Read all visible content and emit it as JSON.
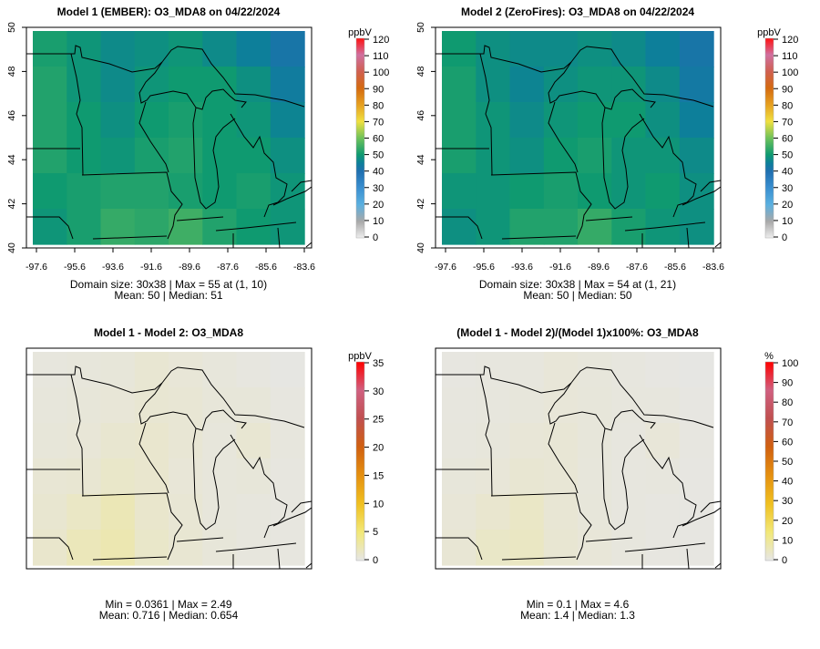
{
  "chart_data": [
    {
      "type": "heatmap",
      "title": "Model 1 (EMBER): O3_MDA8 on 04/22/2024",
      "stats_line1": "Domain size: 30x38 | Max = 55 at (1, 10)",
      "stats_line2": "Mean: 50 |  Median: 51",
      "x_ticks": [
        "-97.6",
        "-95.6",
        "-93.6",
        "-91.6",
        "-89.6",
        "-87.6",
        "-85.6",
        "-83.6"
      ],
      "y_ticks": [
        "50",
        "48",
        "46",
        "44",
        "42",
        "40"
      ],
      "colorbar": {
        "unit": "ppbV",
        "range": [
          0,
          120
        ],
        "ticks": [
          "0",
          "10",
          "20",
          "30",
          "40",
          "50",
          "60",
          "70",
          "80",
          "90",
          "100",
          "110",
          "120"
        ],
        "scale": "ozone"
      },
      "grid": [
        [
          51,
          49,
          47,
          48,
          49,
          47,
          45,
          42
        ],
        [
          52,
          49,
          47,
          49,
          50,
          50,
          48,
          44
        ],
        [
          52,
          50,
          48,
          50,
          51,
          50,
          49,
          46
        ],
        [
          52,
          50,
          49,
          51,
          52,
          50,
          50,
          48
        ],
        [
          50,
          51,
          52,
          52,
          51,
          50,
          51,
          49
        ],
        [
          49,
          51,
          54,
          53,
          55,
          52,
          50,
          49
        ]
      ]
    },
    {
      "type": "heatmap",
      "title": "Model 2 (ZeroFires): O3_MDA8 on 04/22/2024",
      "stats_line1": "Domain size: 30x38 | Max = 54 at (1, 21)",
      "stats_line2": "Mean: 50 |  Median: 50",
      "x_ticks": [
        "-97.6",
        "-95.6",
        "-93.6",
        "-91.6",
        "-89.6",
        "-87.6",
        "-85.6",
        "-83.6"
      ],
      "y_ticks": [
        "50",
        "48",
        "46",
        "44",
        "42",
        "40"
      ],
      "colorbar": {
        "unit": "ppbV",
        "range": [
          0,
          120
        ],
        "ticks": [
          "0",
          "10",
          "20",
          "30",
          "40",
          "50",
          "60",
          "70",
          "80",
          "90",
          "100",
          "110",
          "120"
        ],
        "scale": "ozone"
      },
      "grid": [
        [
          50,
          48,
          47,
          47,
          48,
          47,
          45,
          42
        ],
        [
          51,
          48,
          46,
          48,
          49,
          49,
          47,
          43
        ],
        [
          51,
          49,
          47,
          49,
          50,
          50,
          48,
          45
        ],
        [
          51,
          49,
          48,
          50,
          51,
          49,
          49,
          47
        ],
        [
          49,
          49,
          50,
          51,
          50,
          49,
          50,
          48
        ],
        [
          48,
          49,
          52,
          52,
          54,
          51,
          49,
          48
        ]
      ]
    },
    {
      "type": "heatmap",
      "title": "Model 1 - Model 2: O3_MDA8",
      "stats_line1": "Min = 0.0361 | Max = 2.49",
      "stats_line2": "Mean: 0.716 |  Median: 0.654",
      "colorbar": {
        "unit": "ppbV",
        "range": [
          0,
          35
        ],
        "ticks": [
          "0",
          "5",
          "10",
          "15",
          "20",
          "25",
          "30",
          "35"
        ],
        "scale": "diff"
      },
      "grid": [
        [
          0.4,
          0.5,
          0.6,
          0.9,
          0.7,
          0.5,
          0.3,
          0.2
        ],
        [
          0.5,
          0.6,
          0.7,
          0.9,
          0.8,
          0.6,
          0.6,
          0.3
        ],
        [
          0.6,
          0.7,
          1.0,
          1.1,
          0.8,
          0.5,
          0.9,
          0.4
        ],
        [
          0.8,
          0.9,
          1.3,
          1.1,
          0.7,
          0.5,
          0.6,
          0.3
        ],
        [
          1.0,
          1.5,
          2.2,
          1.2,
          0.8,
          0.5,
          0.4,
          0.3
        ],
        [
          1.2,
          2.0,
          2.4,
          1.3,
          0.9,
          0.6,
          0.4,
          0.3
        ]
      ]
    },
    {
      "type": "heatmap",
      "title": "(Model 1 - Model 2)/(Model 1)x100%: O3_MDA8",
      "stats_line1": "Min = 0.1 | Max = 4.6",
      "stats_line2": "Mean: 1.4 |  Median: 1.3",
      "colorbar": {
        "unit": "%",
        "range": [
          0,
          100
        ],
        "ticks": [
          "0",
          "10",
          "20",
          "30",
          "40",
          "50",
          "60",
          "70",
          "80",
          "90",
          "100"
        ],
        "scale": "diff"
      },
      "grid": [
        [
          0.8,
          1.0,
          1.2,
          1.8,
          1.4,
          1.0,
          0.6,
          0.4
        ],
        [
          1.0,
          1.2,
          1.4,
          1.8,
          1.6,
          1.2,
          1.2,
          0.6
        ],
        [
          1.2,
          1.4,
          2.0,
          2.2,
          1.6,
          1.0,
          1.8,
          0.8
        ],
        [
          1.6,
          1.8,
          2.6,
          2.2,
          1.4,
          1.0,
          1.2,
          0.6
        ],
        [
          2.0,
          3.0,
          4.2,
          2.4,
          1.6,
          1.0,
          0.8,
          0.6
        ],
        [
          2.4,
          4.0,
          4.6,
          2.6,
          1.8,
          1.2,
          0.8,
          0.6
        ]
      ]
    }
  ]
}
